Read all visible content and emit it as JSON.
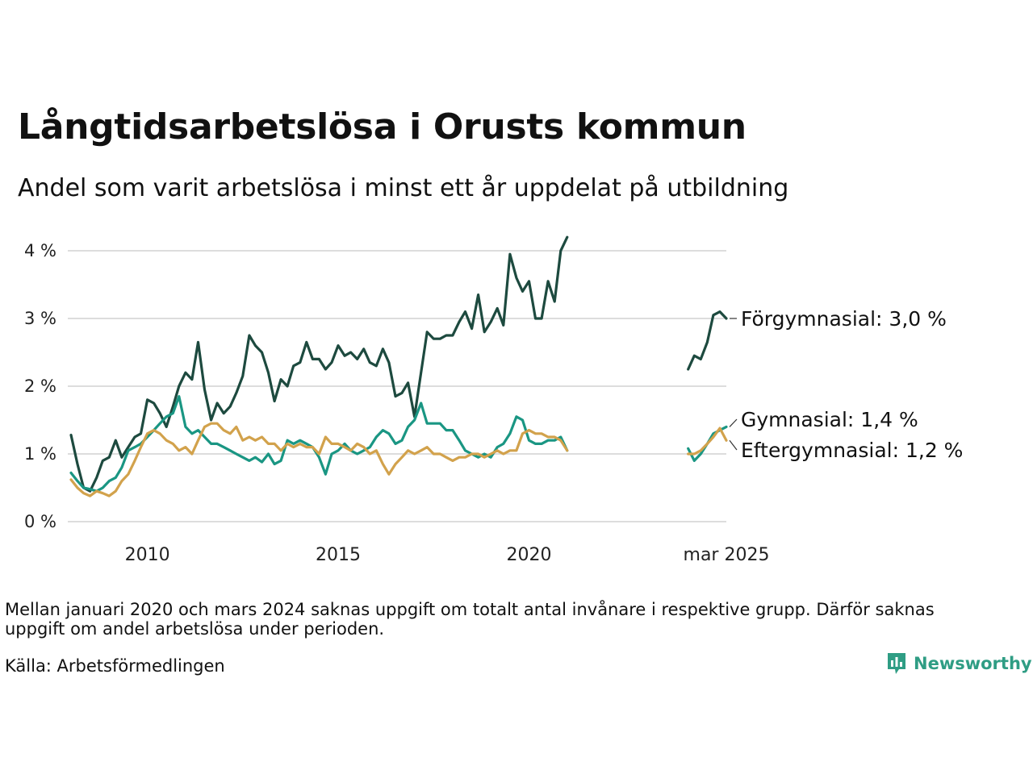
{
  "header": {
    "title": "Långtidsarbetslösa i Orusts kommun",
    "subtitle": "Andel som varit arbetslösa i minst ett år uppdelat på utbildning"
  },
  "footer": {
    "note": "Mellan januari 2020 och mars 2024 saknas uppgift om totalt antal invånare i respektive grupp. Därför saknas uppgift om andel arbetslösa under perioden.",
    "source": "Källa: Arbetsförmedlingen",
    "brand": "Newsworthy"
  },
  "colors": {
    "forgymnasial": "#1d4a3f",
    "gymnasial": "#1a9683",
    "eftergymnasial": "#d2a24c",
    "grid": "#dddddd",
    "brand": "#2f9d84"
  },
  "chart_data": {
    "type": "line",
    "title": "Långtidsarbetslösa i Orusts kommun",
    "subtitle": "Andel som varit arbetslösa i minst ett år uppdelat på utbildning",
    "xlabel": "",
    "ylabel": "",
    "ylim": [
      0,
      4.2
    ],
    "y_ticks": [
      0,
      1,
      2,
      3,
      4
    ],
    "y_tick_labels": [
      "0 %",
      "1 %",
      "2 %",
      "3 %",
      "4 %"
    ],
    "x_ticks": [
      2010,
      2015,
      2020,
      2025.17
    ],
    "x_tick_labels": [
      "2010",
      "2015",
      "2020",
      "mar 2025"
    ],
    "xlim": [
      2008.0,
      2025.17
    ],
    "grid": true,
    "legend": "direct labels at right end of lines",
    "series": [
      {
        "name": "Förgymnasial",
        "end_label": "Förgymnasial: 3,0 %",
        "color": "#1d4a3f",
        "segments": [
          {
            "x": [
              2008.0,
              2008.17,
              2008.33,
              2008.5,
              2008.67,
              2008.83,
              2009.0,
              2009.17,
              2009.33,
              2009.5,
              2009.67,
              2009.83,
              2010.0,
              2010.17,
              2010.33,
              2010.5,
              2010.67,
              2010.83,
              2011.0,
              2011.17,
              2011.33,
              2011.5,
              2011.67,
              2011.83,
              2012.0,
              2012.17,
              2012.33,
              2012.5,
              2012.67,
              2012.83,
              2013.0,
              2013.17,
              2013.33,
              2013.5,
              2013.67,
              2013.83,
              2014.0,
              2014.17,
              2014.33,
              2014.5,
              2014.67,
              2014.83,
              2015.0,
              2015.17,
              2015.33,
              2015.5,
              2015.67,
              2015.83,
              2016.0,
              2016.17,
              2016.33,
              2016.5,
              2016.67,
              2016.83,
              2017.0,
              2017.17,
              2017.33,
              2017.5,
              2017.67,
              2017.83,
              2018.0,
              2018.17,
              2018.33,
              2018.5,
              2018.67,
              2018.83,
              2019.0,
              2019.17,
              2019.33,
              2019.5,
              2019.67,
              2019.83,
              2020.0,
              2020.17,
              2020.33,
              2020.5,
              2020.67,
              2020.83,
              2021.0
            ],
            "y": [
              1.28,
              0.85,
              0.5,
              0.45,
              0.65,
              0.9,
              0.95,
              1.2,
              0.95,
              1.1,
              1.25,
              1.3,
              1.8,
              1.75,
              1.6,
              1.4,
              1.7,
              2.0,
              2.2,
              2.1,
              2.65,
              1.95,
              1.5,
              1.75,
              1.6,
              1.7,
              1.9,
              2.15,
              2.75,
              2.6,
              2.5,
              2.2,
              1.78,
              2.1,
              2.0,
              2.3,
              2.35,
              2.65,
              2.4,
              2.4,
              2.25,
              2.35,
              2.6,
              2.45,
              2.5,
              2.4,
              2.55,
              2.35,
              2.3,
              2.55,
              2.35,
              1.85,
              1.9,
              2.05,
              1.55,
              2.2,
              2.8,
              2.7,
              2.7,
              2.75,
              2.75,
              2.95,
              3.1,
              2.85,
              3.35,
              2.8,
              2.95,
              3.15,
              2.9,
              3.95,
              3.6,
              3.4,
              3.55,
              3.0,
              3.0,
              3.55,
              3.25,
              4.0,
              4.2
            ]
          },
          {
            "x": [
              2024.17,
              2024.33,
              2024.5,
              2024.67,
              2024.83,
              2025.0,
              2025.17
            ],
            "y": [
              2.25,
              2.45,
              2.4,
              2.65,
              3.05,
              3.1,
              3.0
            ]
          }
        ]
      },
      {
        "name": "Gymnasial",
        "end_label": "Gymnasial: 1,4 %",
        "color": "#1a9683",
        "segments": [
          {
            "x": [
              2008.0,
              2008.17,
              2008.33,
              2008.5,
              2008.67,
              2008.83,
              2009.0,
              2009.17,
              2009.33,
              2009.5,
              2009.67,
              2009.83,
              2010.0,
              2010.17,
              2010.33,
              2010.5,
              2010.67,
              2010.83,
              2011.0,
              2011.17,
              2011.33,
              2011.5,
              2011.67,
              2011.83,
              2012.0,
              2012.17,
              2012.33,
              2012.5,
              2012.67,
              2012.83,
              2013.0,
              2013.17,
              2013.33,
              2013.5,
              2013.67,
              2013.83,
              2014.0,
              2014.17,
              2014.33,
              2014.5,
              2014.67,
              2014.83,
              2015.0,
              2015.17,
              2015.33,
              2015.5,
              2015.67,
              2015.83,
              2016.0,
              2016.17,
              2016.33,
              2016.5,
              2016.67,
              2016.83,
              2017.0,
              2017.17,
              2017.33,
              2017.5,
              2017.67,
              2017.83,
              2018.0,
              2018.17,
              2018.33,
              2018.5,
              2018.67,
              2018.83,
              2019.0,
              2019.17,
              2019.33,
              2019.5,
              2019.67,
              2019.83,
              2020.0,
              2020.17,
              2020.33,
              2020.5,
              2020.67,
              2020.83,
              2021.0
            ],
            "y": [
              0.72,
              0.6,
              0.5,
              0.48,
              0.45,
              0.5,
              0.6,
              0.65,
              0.8,
              1.05,
              1.1,
              1.15,
              1.25,
              1.35,
              1.45,
              1.55,
              1.6,
              1.85,
              1.4,
              1.3,
              1.35,
              1.25,
              1.15,
              1.15,
              1.1,
              1.05,
              1.0,
              0.95,
              0.9,
              0.95,
              0.88,
              1.0,
              0.85,
              0.9,
              1.2,
              1.15,
              1.2,
              1.15,
              1.1,
              0.95,
              0.7,
              1.0,
              1.05,
              1.15,
              1.05,
              1.0,
              1.05,
              1.1,
              1.25,
              1.35,
              1.3,
              1.15,
              1.2,
              1.4,
              1.5,
              1.75,
              1.45,
              1.45,
              1.45,
              1.35,
              1.35,
              1.2,
              1.05,
              1.0,
              0.95,
              1.0,
              0.95,
              1.1,
              1.15,
              1.3,
              1.55,
              1.5,
              1.2,
              1.15,
              1.15,
              1.2,
              1.2,
              1.25,
              1.05
            ]
          },
          {
            "x": [
              2024.17,
              2024.33,
              2024.5,
              2024.67,
              2024.83,
              2025.0,
              2025.17
            ],
            "y": [
              1.08,
              0.9,
              1.0,
              1.15,
              1.3,
              1.35,
              1.4
            ]
          }
        ]
      },
      {
        "name": "Eftergymnasial",
        "end_label": "Eftergymnasial: 1,2 %",
        "color": "#d2a24c",
        "segments": [
          {
            "x": [
              2008.0,
              2008.17,
              2008.33,
              2008.5,
              2008.67,
              2008.83,
              2009.0,
              2009.17,
              2009.33,
              2009.5,
              2009.67,
              2009.83,
              2010.0,
              2010.17,
              2010.33,
              2010.5,
              2010.67,
              2010.83,
              2011.0,
              2011.17,
              2011.33,
              2011.5,
              2011.67,
              2011.83,
              2012.0,
              2012.17,
              2012.33,
              2012.5,
              2012.67,
              2012.83,
              2013.0,
              2013.17,
              2013.33,
              2013.5,
              2013.67,
              2013.83,
              2014.0,
              2014.17,
              2014.33,
              2014.5,
              2014.67,
              2014.83,
              2015.0,
              2015.17,
              2015.33,
              2015.5,
              2015.67,
              2015.83,
              2016.0,
              2016.17,
              2016.33,
              2016.5,
              2016.67,
              2016.83,
              2017.0,
              2017.17,
              2017.33,
              2017.5,
              2017.67,
              2017.83,
              2018.0,
              2018.17,
              2018.33,
              2018.5,
              2018.67,
              2018.83,
              2019.0,
              2019.17,
              2019.33,
              2019.5,
              2019.67,
              2019.83,
              2020.0,
              2020.17,
              2020.33,
              2020.5,
              2020.67,
              2020.83,
              2021.0
            ],
            "y": [
              0.62,
              0.5,
              0.42,
              0.38,
              0.45,
              0.42,
              0.38,
              0.45,
              0.6,
              0.7,
              0.9,
              1.1,
              1.3,
              1.35,
              1.3,
              1.2,
              1.15,
              1.05,
              1.1,
              1.0,
              1.2,
              1.4,
              1.45,
              1.45,
              1.35,
              1.3,
              1.4,
              1.2,
              1.25,
              1.2,
              1.25,
              1.15,
              1.15,
              1.05,
              1.15,
              1.1,
              1.15,
              1.1,
              1.1,
              1.0,
              1.25,
              1.15,
              1.15,
              1.1,
              1.05,
              1.15,
              1.1,
              1.0,
              1.05,
              0.85,
              0.7,
              0.85,
              0.95,
              1.05,
              1.0,
              1.05,
              1.1,
              1.0,
              1.0,
              0.95,
              0.9,
              0.95,
              0.95,
              1.0,
              1.0,
              0.95,
              1.0,
              1.05,
              1.0,
              1.05,
              1.05,
              1.3,
              1.35,
              1.3,
              1.3,
              1.25,
              1.25,
              1.2,
              1.05
            ]
          },
          {
            "x": [
              2024.17,
              2024.33,
              2024.5,
              2024.67,
              2024.83,
              2025.0,
              2025.17
            ],
            "y": [
              1.0,
              1.0,
              1.05,
              1.15,
              1.25,
              1.38,
              1.2
            ]
          }
        ]
      }
    ]
  }
}
